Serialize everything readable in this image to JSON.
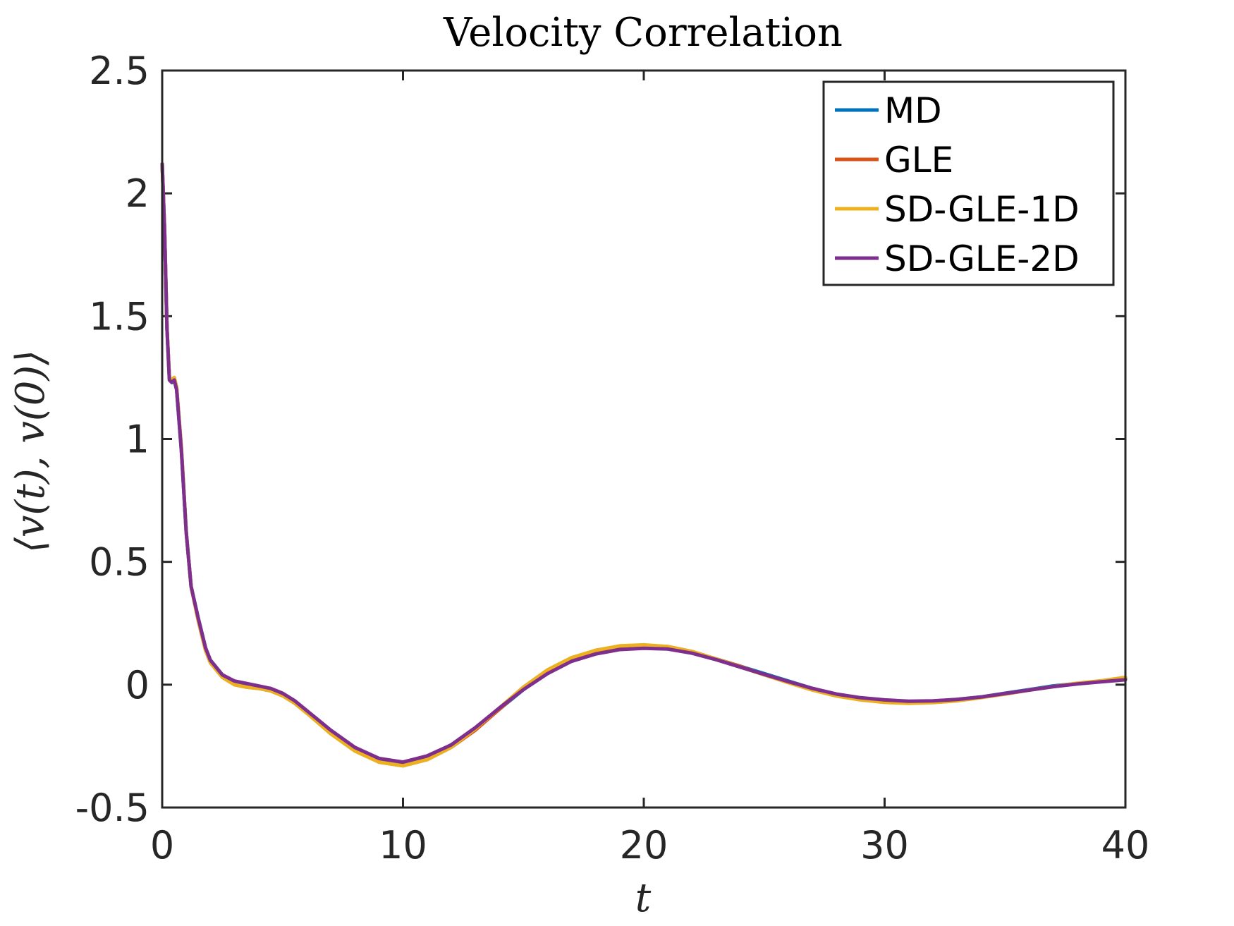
{
  "chart_data": {
    "type": "line",
    "title": "Velocity Correlation",
    "xlabel": "t",
    "ylabel": "⟨v(t), v(0)⟩",
    "xlim": [
      0,
      40
    ],
    "ylim": [
      -0.5,
      2.5
    ],
    "xticks": [
      0,
      10,
      20,
      30,
      40
    ],
    "xtick_labels": [
      "0",
      "10",
      "20",
      "30",
      "40"
    ],
    "yticks": [
      -0.5,
      0,
      0.5,
      1,
      1.5,
      2,
      2.5
    ],
    "ytick_labels": [
      "-0.5",
      "0",
      "0.5",
      "1",
      "1.5",
      "2",
      "2.5"
    ],
    "legend_position": "top-right",
    "grid": false,
    "series": [
      {
        "name": "MD",
        "color": "#0072BD",
        "x": [
          0,
          0.1,
          0.2,
          0.3,
          0.4,
          0.5,
          0.6,
          0.8,
          1.0,
          1.2,
          1.5,
          1.8,
          2.0,
          2.5,
          3.0,
          3.5,
          4.0,
          4.5,
          5.0,
          5.5,
          6.0,
          7.0,
          8.0,
          9.0,
          10.0,
          11.0,
          12.0,
          13.0,
          14.0,
          15.0,
          16.0,
          17.0,
          18.0,
          19.0,
          20.0,
          21.0,
          22.0,
          23.0,
          24.0,
          25.0,
          26.0,
          27.0,
          28.0,
          29.0,
          30.0,
          31.0,
          32.0,
          33.0,
          34.0,
          35.0,
          36.0,
          37.0,
          38.0,
          39.0,
          40.0
        ],
        "y": [
          2.12,
          1.85,
          1.45,
          1.25,
          1.23,
          1.24,
          1.2,
          0.95,
          0.62,
          0.4,
          0.27,
          0.15,
          0.1,
          0.04,
          0.01,
          0.0,
          -0.01,
          -0.02,
          -0.04,
          -0.07,
          -0.11,
          -0.19,
          -0.26,
          -0.31,
          -0.325,
          -0.3,
          -0.25,
          -0.18,
          -0.1,
          -0.02,
          0.05,
          0.1,
          0.13,
          0.15,
          0.155,
          0.15,
          0.13,
          0.105,
          0.075,
          0.045,
          0.015,
          -0.015,
          -0.04,
          -0.055,
          -0.065,
          -0.07,
          -0.068,
          -0.06,
          -0.05,
          -0.035,
          -0.02,
          -0.005,
          0.005,
          0.015,
          0.025
        ]
      },
      {
        "name": "GLE",
        "color": "#D95319",
        "x": [
          0,
          0.1,
          0.2,
          0.3,
          0.4,
          0.5,
          0.6,
          0.8,
          1.0,
          1.2,
          1.5,
          1.8,
          2.0,
          2.5,
          3.0,
          3.5,
          4.0,
          4.5,
          5.0,
          5.5,
          6.0,
          7.0,
          8.0,
          9.0,
          10.0,
          11.0,
          12.0,
          13.0,
          14.0,
          15.0,
          16.0,
          17.0,
          18.0,
          19.0,
          20.0,
          21.0,
          22.0,
          23.0,
          24.0,
          25.0,
          26.0,
          27.0,
          28.0,
          29.0,
          30.0,
          31.0,
          32.0,
          33.0,
          34.0,
          35.0,
          36.0,
          37.0,
          38.0,
          39.0,
          40.0
        ],
        "y": [
          2.12,
          1.85,
          1.45,
          1.25,
          1.24,
          1.25,
          1.21,
          0.96,
          0.62,
          0.4,
          0.26,
          0.14,
          0.09,
          0.03,
          0.0,
          -0.01,
          -0.015,
          -0.025,
          -0.045,
          -0.075,
          -0.115,
          -0.195,
          -0.265,
          -0.315,
          -0.33,
          -0.305,
          -0.255,
          -0.185,
          -0.1,
          -0.015,
          0.055,
          0.105,
          0.14,
          0.155,
          0.16,
          0.155,
          0.135,
          0.105,
          0.075,
          0.04,
          0.01,
          -0.02,
          -0.045,
          -0.06,
          -0.07,
          -0.075,
          -0.072,
          -0.065,
          -0.052,
          -0.038,
          -0.022,
          -0.008,
          0.005,
          0.015,
          0.028
        ]
      },
      {
        "name": "SD-GLE-1D",
        "color": "#EDB120",
        "x": [
          0,
          0.1,
          0.2,
          0.3,
          0.4,
          0.5,
          0.6,
          0.8,
          1.0,
          1.2,
          1.5,
          1.8,
          2.0,
          2.5,
          3.0,
          3.5,
          4.0,
          4.5,
          5.0,
          5.5,
          6.0,
          7.0,
          8.0,
          9.0,
          10.0,
          11.0,
          12.0,
          13.0,
          14.0,
          15.0,
          16.0,
          17.0,
          18.0,
          19.0,
          20.0,
          21.0,
          22.0,
          23.0,
          24.0,
          25.0,
          26.0,
          27.0,
          28.0,
          29.0,
          30.0,
          31.0,
          32.0,
          33.0,
          34.0,
          35.0,
          36.0,
          37.0,
          38.0,
          39.0,
          40.0
        ],
        "y": [
          2.12,
          1.85,
          1.45,
          1.25,
          1.24,
          1.25,
          1.21,
          0.96,
          0.62,
          0.4,
          0.26,
          0.14,
          0.09,
          0.03,
          0.0,
          -0.01,
          -0.015,
          -0.025,
          -0.045,
          -0.075,
          -0.115,
          -0.2,
          -0.27,
          -0.315,
          -0.33,
          -0.305,
          -0.255,
          -0.18,
          -0.095,
          -0.01,
          0.06,
          0.11,
          0.14,
          0.158,
          0.162,
          0.155,
          0.135,
          0.105,
          0.072,
          0.04,
          0.008,
          -0.022,
          -0.046,
          -0.062,
          -0.072,
          -0.076,
          -0.073,
          -0.066,
          -0.053,
          -0.038,
          -0.022,
          -0.008,
          0.006,
          0.016,
          0.03
        ]
      },
      {
        "name": "SD-GLE-2D",
        "color": "#7E2F8E",
        "x": [
          0,
          0.1,
          0.2,
          0.3,
          0.4,
          0.5,
          0.6,
          0.8,
          1.0,
          1.2,
          1.5,
          1.8,
          2.0,
          2.5,
          3.0,
          3.5,
          4.0,
          4.5,
          5.0,
          5.5,
          6.0,
          7.0,
          8.0,
          9.0,
          10.0,
          11.0,
          12.0,
          13.0,
          14.0,
          15.0,
          16.0,
          17.0,
          18.0,
          19.0,
          20.0,
          21.0,
          22.0,
          23.0,
          24.0,
          25.0,
          26.0,
          27.0,
          28.0,
          29.0,
          30.0,
          31.0,
          32.0,
          33.0,
          34.0,
          35.0,
          36.0,
          37.0,
          38.0,
          39.0,
          40.0
        ],
        "y": [
          2.12,
          1.85,
          1.45,
          1.24,
          1.23,
          1.24,
          1.2,
          0.95,
          0.62,
          0.4,
          0.27,
          0.15,
          0.1,
          0.04,
          0.015,
          0.005,
          -0.005,
          -0.015,
          -0.035,
          -0.065,
          -0.105,
          -0.185,
          -0.255,
          -0.3,
          -0.315,
          -0.29,
          -0.245,
          -0.175,
          -0.095,
          -0.02,
          0.045,
          0.095,
          0.125,
          0.143,
          0.148,
          0.145,
          0.128,
          0.102,
          0.072,
          0.042,
          0.013,
          -0.015,
          -0.038,
          -0.053,
          -0.062,
          -0.067,
          -0.066,
          -0.06,
          -0.05,
          -0.036,
          -0.022,
          -0.008,
          0.003,
          0.012,
          0.02
        ]
      }
    ]
  }
}
